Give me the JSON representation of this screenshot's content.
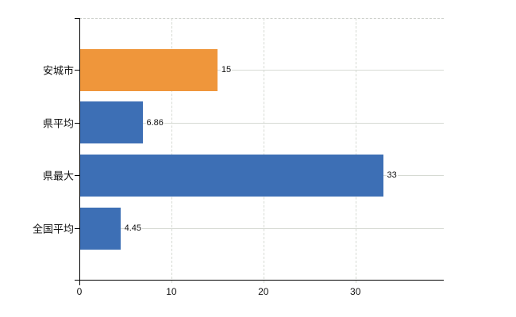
{
  "chart_data": {
    "type": "bar",
    "orientation": "horizontal",
    "title": "",
    "xlabel": "",
    "ylabel": "",
    "categories": [
      "安城市",
      "県平均",
      "県最大",
      "全国平均"
    ],
    "values": [
      15,
      6.86,
      33,
      4.45
    ],
    "value_labels": [
      "15",
      "6.86",
      "33",
      "4.45"
    ],
    "bar_colors": [
      "#ef963b",
      "#3d6fb5",
      "#3d6fb5",
      "#3d6fb5"
    ],
    "x_ticks": [
      0,
      10,
      20,
      30
    ],
    "x_tick_labels": [
      "0",
      "10",
      "20",
      "30"
    ],
    "xlim": [
      0,
      39.6
    ],
    "grid": "horizontal-solid and vertical-dashed",
    "legend": "none",
    "colors": {
      "bar_orange": "#ef963b",
      "bar_blue": "#3d6fb5",
      "gridline": "#d6dad3",
      "axis": "#000000",
      "text": "#111111",
      "background": "#ffffff"
    }
  }
}
